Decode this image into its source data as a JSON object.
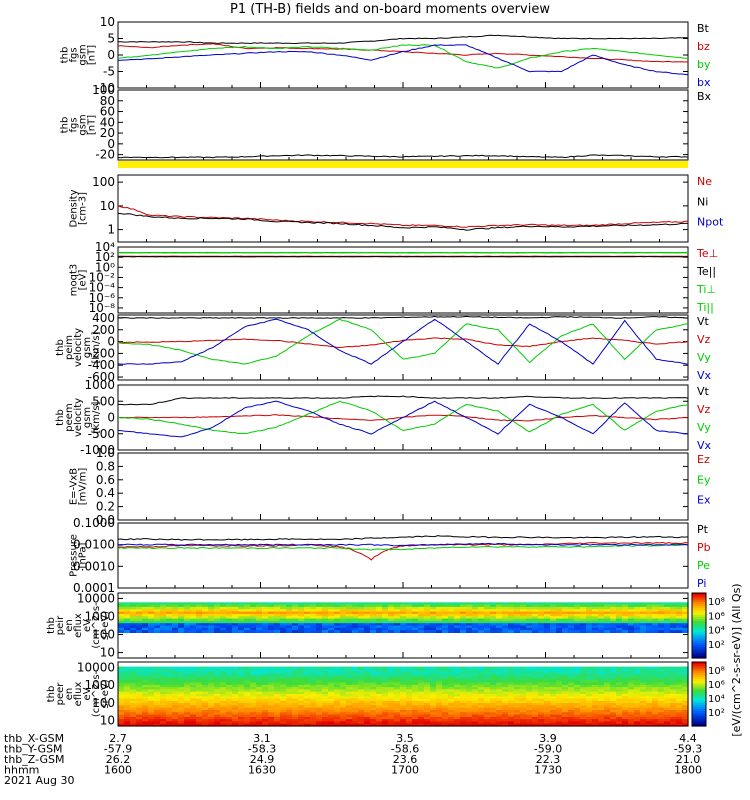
{
  "title": "P1 (TH-B) fields and on-board moments overview",
  "chart_data": [
    {
      "type": "line",
      "ylabel": [
        "thb",
        "fgs",
        "gsm",
        "[nT]"
      ],
      "yticks": [
        "10",
        "5",
        "0",
        "-5",
        "-10"
      ],
      "ylim": [
        -10,
        10
      ],
      "series": [
        {
          "name": "Bt",
          "color": "#000000",
          "values": [
            4,
            4,
            4,
            3.6,
            3.6,
            3.6,
            3.6,
            3.6,
            4.2,
            5,
            5,
            5.5,
            6,
            5.5,
            5,
            5,
            5,
            5,
            5.2
          ]
        },
        {
          "name": "bz",
          "color": "#cc0000",
          "values": [
            2.8,
            2.2,
            3,
            3.4,
            2,
            2.2,
            2,
            1.8,
            1.5,
            1,
            0.5,
            0,
            0.5,
            0,
            -0.5,
            -1,
            -1.5,
            -2,
            -2
          ]
        },
        {
          "name": "by",
          "color": "#00cc00",
          "values": [
            -1,
            0,
            1,
            2,
            2.5,
            2,
            2.5,
            2,
            1.5,
            3,
            3,
            -2,
            -4,
            -1,
            1,
            2,
            1,
            0,
            -1
          ]
        },
        {
          "name": "bx",
          "color": "#0000cc",
          "values": [
            -1.5,
            -1.2,
            -0.5,
            0,
            0.5,
            1,
            1,
            0,
            -1.5,
            1,
            3,
            3,
            -1,
            -5,
            -5,
            0,
            -3,
            -5,
            -6
          ]
        }
      ]
    },
    {
      "type": "line",
      "ylabel": [
        "thb",
        "fgs",
        "gsm",
        "[nT]"
      ],
      "yticks": [
        "100",
        "80",
        "60",
        "40",
        "20",
        "0",
        "-20"
      ],
      "ylim": [
        -30,
        100
      ],
      "series": [
        {
          "name": "Bx",
          "color": "#000000",
          "values": [
            -25,
            -25,
            -25,
            -25,
            -24,
            -22,
            -21,
            -22,
            -23,
            -24,
            -23,
            -22,
            -22,
            -24,
            -25,
            -21,
            -22,
            -24,
            -24
          ]
        }
      ]
    },
    {
      "type": "line",
      "ylabel": [
        "Density",
        "[cm-3]"
      ],
      "yticks": [
        "100",
        "10",
        "1"
      ],
      "scale": "log",
      "ylim": [
        0.3,
        200
      ],
      "series": [
        {
          "name": "Ne",
          "color": "#cc0000",
          "values": [
            10,
            4,
            3.5,
            3.2,
            3,
            2.5,
            2.2,
            2,
            1.8,
            1.5,
            1.5,
            1.3,
            1.5,
            1.6,
            1.5,
            1.5,
            1.8,
            2,
            2.2
          ]
        },
        {
          "name": "Ni",
          "color": "#000000",
          "values": [
            5,
            3.5,
            3,
            3,
            2.8,
            2.2,
            2,
            1.8,
            1.5,
            1.2,
            1.3,
            1,
            1.2,
            1.4,
            1.3,
            1.4,
            1.5,
            1.6,
            1.8
          ]
        },
        {
          "name": "Npot",
          "color": "#0000cc",
          "values": []
        }
      ]
    },
    {
      "type": "line",
      "ylabel": [
        "moqt3",
        "[eV]"
      ],
      "yticks": [
        "10⁴",
        "10²",
        "10⁰",
        "10⁻²",
        "10⁻⁴",
        "10⁻⁶",
        "10⁻⁸"
      ],
      "scale": "log",
      "ylim": [
        1e-09,
        10000
      ],
      "series": [
        {
          "name": "Te⊥",
          "color": "#cc0000",
          "values": [
            150,
            150,
            150,
            150,
            150,
            150,
            150,
            150,
            150,
            150,
            150,
            150,
            150,
            150,
            150,
            150,
            150,
            150,
            150
          ]
        },
        {
          "name": "Te||",
          "color": "#000000",
          "values": [
            120,
            120,
            120,
            120,
            120,
            120,
            120,
            120,
            120,
            120,
            120,
            120,
            120,
            120,
            120,
            120,
            120,
            120,
            120
          ]
        },
        {
          "name": "Ti⊥",
          "color": "#00cc00",
          "values": [
            800,
            800,
            800,
            800,
            800,
            800,
            800,
            800,
            800,
            800,
            800,
            800,
            800,
            800,
            800,
            800,
            800,
            800,
            800
          ]
        },
        {
          "name": "Ti||",
          "color": "#00cc00",
          "values": [
            700,
            700,
            700,
            700,
            700,
            700,
            700,
            700,
            700,
            700,
            700,
            700,
            700,
            700,
            700,
            700,
            700,
            700,
            700
          ]
        }
      ]
    },
    {
      "type": "line",
      "ylabel": [
        "thb",
        "peim",
        "velocity",
        "gsm",
        "[km/s]"
      ],
      "yticks": [
        "400",
        "200",
        "0",
        "-200",
        "-400",
        "-600"
      ],
      "ylim": [
        -650,
        450
      ],
      "series": [
        {
          "name": "Vt",
          "color": "#000000",
          "values": [
            400,
            400,
            400,
            400,
            400,
            400,
            400,
            400,
            400,
            410,
            420,
            420,
            410,
            400,
            420,
            410,
            400,
            420,
            400
          ]
        },
        {
          "name": "Vz",
          "color": "#cc0000",
          "values": [
            -10,
            -10,
            0,
            20,
            40,
            20,
            -40,
            -100,
            -60,
            20,
            60,
            40,
            -60,
            -80,
            0,
            60,
            20,
            -40,
            0
          ]
        },
        {
          "name": "Vy",
          "color": "#00cc00",
          "values": [
            -20,
            -50,
            -150,
            -300,
            -380,
            -250,
            100,
            380,
            200,
            -300,
            -200,
            300,
            200,
            -350,
            100,
            300,
            -300,
            200,
            300
          ]
        },
        {
          "name": "Vx",
          "color": "#0000cc",
          "values": [
            -380,
            -380,
            -340,
            -100,
            250,
            380,
            200,
            -150,
            -380,
            0,
            380,
            0,
            -380,
            300,
            0,
            -380,
            350,
            -300,
            -380
          ]
        }
      ]
    },
    {
      "type": "line",
      "ylabel": [
        "thb",
        "peem",
        "velocity",
        "gsm",
        "[km/s]"
      ],
      "yticks": [
        "1000",
        "500",
        "0",
        "-500",
        "-1000"
      ],
      "ylim": [
        -1000,
        1000
      ],
      "series": [
        {
          "name": "Vt",
          "color": "#000000",
          "values": [
            400,
            400,
            600,
            600,
            600,
            600,
            600,
            600,
            650,
            650,
            600,
            600,
            600,
            650,
            600,
            600,
            600,
            600,
            600
          ]
        },
        {
          "name": "Vz",
          "color": "#cc0000",
          "values": [
            0,
            0,
            0,
            20,
            50,
            80,
            30,
            -40,
            -90,
            0,
            80,
            30,
            -80,
            -100,
            0,
            60,
            0,
            -60,
            0
          ]
        },
        {
          "name": "Vy",
          "color": "#00cc00",
          "values": [
            0,
            -50,
            -200,
            -400,
            -500,
            -300,
            100,
            500,
            200,
            -400,
            -200,
            400,
            200,
            -450,
            100,
            400,
            -400,
            200,
            400
          ]
        },
        {
          "name": "Vx",
          "color": "#0000cc",
          "values": [
            -400,
            -500,
            -600,
            -300,
            300,
            500,
            200,
            -200,
            -500,
            0,
            500,
            0,
            -500,
            400,
            0,
            -500,
            450,
            -400,
            -500
          ]
        }
      ]
    },
    {
      "type": "line",
      "ylabel": [
        "E=-VxB",
        "[mV/m]"
      ],
      "yticks": [
        "1.0",
        "0.8",
        "0.6",
        "0.4",
        "0.2",
        "0.0"
      ],
      "ylim": [
        0,
        1
      ],
      "series": [
        {
          "name": "Ez",
          "color": "#cc0000",
          "values": []
        },
        {
          "name": "Ey",
          "color": "#00cc00",
          "values": []
        },
        {
          "name": "Ex",
          "color": "#0000cc",
          "values": []
        }
      ]
    },
    {
      "type": "line",
      "ylabel": [
        "Pressure",
        "[nPa]"
      ],
      "yticks": [
        "0.1000",
        "0.0100",
        "0.0010",
        "0.0001"
      ],
      "scale": "log",
      "ylim": [
        0.0001,
        0.1
      ],
      "series": [
        {
          "name": "Pt",
          "color": "#000000",
          "values": [
            0.018,
            0.018,
            0.017,
            0.017,
            0.017,
            0.018,
            0.018,
            0.017,
            0.02,
            0.022,
            0.025,
            0.023,
            0.022,
            0.022,
            0.021,
            0.021,
            0.022,
            0.023,
            0.022
          ]
        },
        {
          "name": "Pb",
          "color": "#cc0000",
          "values": [
            0.008,
            0.008,
            0.009,
            0.009,
            0.009,
            0.009,
            0.01,
            0.008,
            0.002,
            0.009,
            0.01,
            0.01,
            0.01,
            0.01,
            0.011,
            0.012,
            0.012,
            0.012,
            0.012
          ]
        },
        {
          "name": "Pe",
          "color": "#00cc00",
          "values": [
            0.007,
            0.007,
            0.007,
            0.007,
            0.007,
            0.007,
            0.007,
            0.007,
            0.006,
            0.006,
            0.007,
            0.008,
            0.008,
            0.008,
            0.008,
            0.008,
            0.009,
            0.009,
            0.01
          ]
        },
        {
          "name": "Pi",
          "color": "#0000cc",
          "values": [
            0.01,
            0.01,
            0.01,
            0.01,
            0.01,
            0.01,
            0.01,
            0.01,
            0.01,
            0.009,
            0.01,
            0.011,
            0.011,
            0.01,
            0.01,
            0.01,
            0.01,
            0.01,
            0.01
          ]
        }
      ]
    },
    {
      "type": "heatmap",
      "ylabel": [
        "thb",
        "peir",
        "en",
        "eflux",
        "eV",
        "(cm^2-s-",
        "sr-eV)"
      ],
      "yticks": [
        "10000",
        "1000",
        "100",
        "10"
      ],
      "scale": "log",
      "ylim": [
        5,
        20000
      ],
      "colorbar": {
        "ticks": [
          "10⁸",
          "10⁶",
          "10⁴",
          "10²"
        ],
        "label": "[eV/(cm^2-s-sr-eV)] (All Qs)"
      }
    },
    {
      "type": "heatmap",
      "ylabel": [
        "thb",
        "peer",
        "en",
        "eflux",
        "eV",
        "(cm^2-s-",
        "sr-eV)"
      ],
      "yticks": [
        "10000",
        "1000",
        "100",
        "10"
      ],
      "scale": "log",
      "ylim": [
        5,
        20000
      ],
      "colorbar": {
        "ticks": [
          "10⁸",
          "10⁶",
          "10⁴",
          "10²"
        ],
        "label": "[eV/(cm^2-s-sr-eV)] (All Qs)"
      }
    }
  ],
  "xaxis": {
    "rows": [
      {
        "label": "thb_X-GSM",
        "values": [
          "2.7",
          "3.1",
          "3.5",
          "3.9",
          "4.4"
        ]
      },
      {
        "label": "thb_Y-GSM",
        "values": [
          "-57.9",
          "-58.3",
          "-58.6",
          "-59.0",
          "-59.3"
        ]
      },
      {
        "label": "thb_Z-GSM",
        "values": [
          "26.2",
          "24.9",
          "23.6",
          "22.3",
          "21.0"
        ]
      },
      {
        "label": "hhmm",
        "values": [
          "1600",
          "1630",
          "1700",
          "1730",
          "1800"
        ]
      }
    ],
    "date": "2021 Aug 30"
  }
}
